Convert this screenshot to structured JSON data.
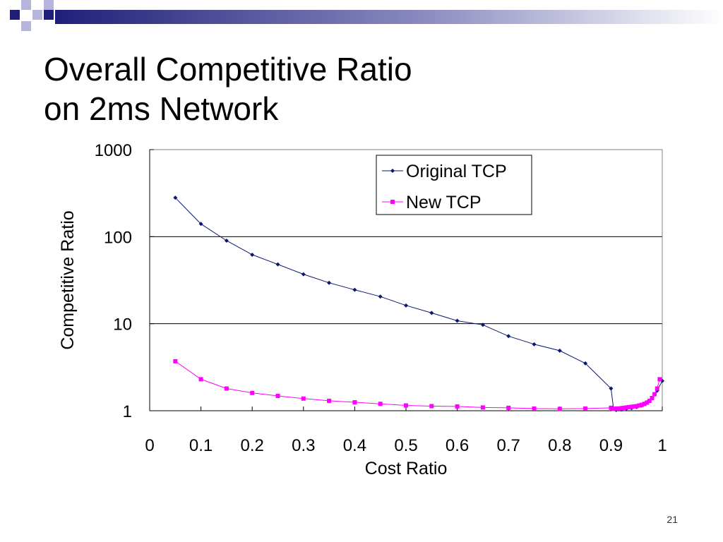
{
  "slide": {
    "title_line1": "Overall Competitive Ratio",
    "title_line2": "on 2ms Network",
    "slide_number": "21"
  },
  "colors": {
    "accent": "#1F1F7A",
    "accent_light": "#B4B4DC",
    "original_tcp": "#0A1670",
    "new_tcp": "#FF00FF"
  },
  "chart_data": {
    "type": "line",
    "title": "",
    "xlabel": "Cost Ratio",
    "ylabel": "Competitive Ratio",
    "xlim": [
      0,
      1
    ],
    "ylim": [
      1,
      1000
    ],
    "yscale": "log",
    "x_ticks": [
      "0",
      "0.1",
      "0.2",
      "0.3",
      "0.4",
      "0.5",
      "0.6",
      "0.7",
      "0.8",
      "0.9",
      "1"
    ],
    "y_ticks": [
      "1",
      "10",
      "100",
      "1000"
    ],
    "grid": "horizontal major lines",
    "legend_position": "top-right",
    "series": [
      {
        "name": "Original TCP",
        "marker": "diamond",
        "color": "#0A1670",
        "x": [
          0.05,
          0.1,
          0.15,
          0.2,
          0.25,
          0.3,
          0.35,
          0.4,
          0.45,
          0.5,
          0.55,
          0.6,
          0.65,
          0.7,
          0.75,
          0.8,
          0.85,
          0.9,
          0.905,
          0.91,
          0.92,
          0.93,
          0.94,
          0.95,
          0.96,
          0.97,
          0.98,
          0.99,
          1.0
        ],
        "y": [
          280,
          140,
          90,
          62,
          48,
          37,
          29.5,
          24.5,
          20.5,
          16.2,
          13.3,
          10.8,
          9.7,
          7.2,
          5.8,
          4.9,
          3.5,
          1.8,
          1.05,
          1.02,
          1.03,
          1.05,
          1.07,
          1.1,
          1.15,
          1.25,
          1.4,
          1.7,
          2.2
        ]
      },
      {
        "name": "New TCP",
        "marker": "square",
        "color": "#FF00FF",
        "x": [
          0.05,
          0.1,
          0.15,
          0.2,
          0.25,
          0.3,
          0.35,
          0.4,
          0.45,
          0.5,
          0.55,
          0.6,
          0.65,
          0.7,
          0.75,
          0.8,
          0.85,
          0.9,
          0.905,
          0.91,
          0.915,
          0.92,
          0.925,
          0.93,
          0.935,
          0.94,
          0.945,
          0.95,
          0.955,
          0.96,
          0.965,
          0.97,
          0.975,
          0.98,
          0.985,
          0.99,
          0.995
        ],
        "y": [
          3.7,
          2.3,
          1.8,
          1.6,
          1.48,
          1.38,
          1.3,
          1.25,
          1.2,
          1.15,
          1.13,
          1.12,
          1.09,
          1.08,
          1.06,
          1.05,
          1.06,
          1.08,
          1.05,
          1.06,
          1.06,
          1.07,
          1.08,
          1.09,
          1.1,
          1.11,
          1.12,
          1.13,
          1.15,
          1.17,
          1.2,
          1.24,
          1.3,
          1.4,
          1.55,
          1.8,
          2.3
        ]
      }
    ]
  }
}
